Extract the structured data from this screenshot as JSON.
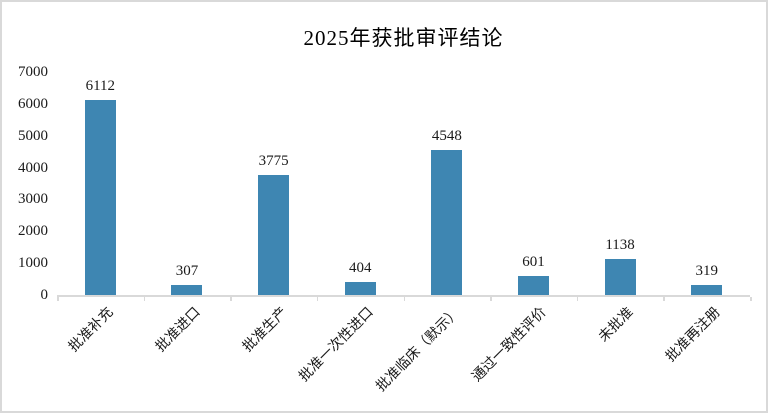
{
  "chart_data": {
    "type": "bar",
    "title": "2025年获批审评结论",
    "categories": [
      "批准补充",
      "批准进口",
      "批准生产",
      "批准一次性进口",
      "批准临床（默示）",
      "通过一致性评价",
      "未批准",
      "批准再注册"
    ],
    "values": [
      6112,
      307,
      3775,
      404,
      4548,
      601,
      1138,
      319
    ],
    "data_labels": [
      6112,
      307,
      3775,
      404,
      4548,
      601,
      1138,
      319
    ],
    "xlabel": "",
    "ylabel": "",
    "ylim": [
      0,
      7000
    ],
    "yticks": [
      7000,
      6000,
      5000,
      4000,
      3000,
      2000,
      1000,
      0
    ],
    "grid": false,
    "legend": false,
    "bar_color": "#3E86B2",
    "axis_color": "#D9D9D9",
    "text_color": "#1a1a1a",
    "frame_color": "#D9D9D9"
  }
}
